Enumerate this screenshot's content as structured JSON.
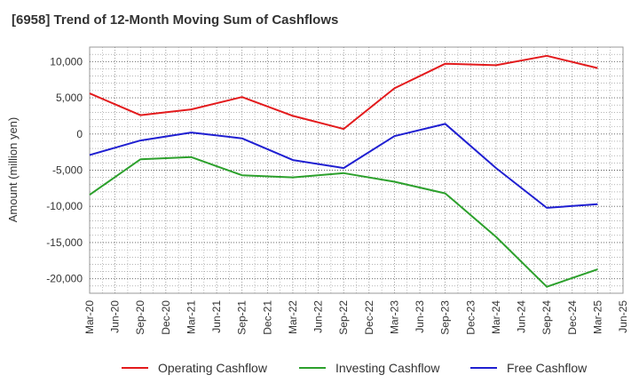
{
  "chart_data": {
    "type": "line",
    "title": "[6958]  Trend of 12-Month Moving Sum of Cashflows",
    "ylabel": "Amount (million yen)",
    "xlabel": "",
    "ylim": [
      -22000,
      12000
    ],
    "yticks": [
      10000,
      5000,
      0,
      -5000,
      -10000,
      -15000,
      -20000
    ],
    "ytick_labels": [
      "10,000",
      "5,000",
      "0",
      "-5,000",
      "-10,000",
      "-15,000",
      "-20,000"
    ],
    "categories": [
      "Mar-20",
      "Jun-20",
      "Sep-20",
      "Dec-20",
      "Mar-21",
      "Jun-21",
      "Sep-21",
      "Dec-21",
      "Mar-22",
      "Jun-22",
      "Sep-22",
      "Dec-22",
      "Mar-23",
      "Jun-23",
      "Sep-23",
      "Dec-23",
      "Mar-24",
      "Jun-24",
      "Sep-24",
      "Dec-24",
      "Mar-25",
      "Jun-25"
    ],
    "grid": true,
    "legend_position": "bottom",
    "series": [
      {
        "name": "Operating Cashflow",
        "color": "#e31a1c",
        "x": [
          "Mar-20",
          "Sep-20",
          "Mar-21",
          "Sep-21",
          "Mar-22",
          "Sep-22",
          "Mar-23",
          "Sep-23",
          "Mar-24",
          "Sep-24",
          "Mar-25"
        ],
        "values": [
          5600,
          2600,
          3400,
          5100,
          2500,
          700,
          6300,
          9700,
          9500,
          10800,
          9100
        ]
      },
      {
        "name": "Investing Cashflow",
        "color": "#2ca02c",
        "x": [
          "Mar-20",
          "Sep-20",
          "Mar-21",
          "Sep-21",
          "Mar-22",
          "Sep-22",
          "Mar-23",
          "Sep-23",
          "Mar-24",
          "Sep-24",
          "Mar-25"
        ],
        "values": [
          -8400,
          -3500,
          -3200,
          -5700,
          -6000,
          -5400,
          -6600,
          -8200,
          -14200,
          -21100,
          -18700
        ]
      },
      {
        "name": "Free Cashflow",
        "color": "#1f1fd1",
        "x": [
          "Mar-20",
          "Sep-20",
          "Mar-21",
          "Sep-21",
          "Mar-22",
          "Sep-22",
          "Mar-23",
          "Sep-23",
          "Mar-24",
          "Sep-24",
          "Mar-25"
        ],
        "values": [
          -2900,
          -900,
          200,
          -600,
          -3600,
          -4700,
          -300,
          1400,
          -4700,
          -10200,
          -9700
        ]
      }
    ]
  }
}
